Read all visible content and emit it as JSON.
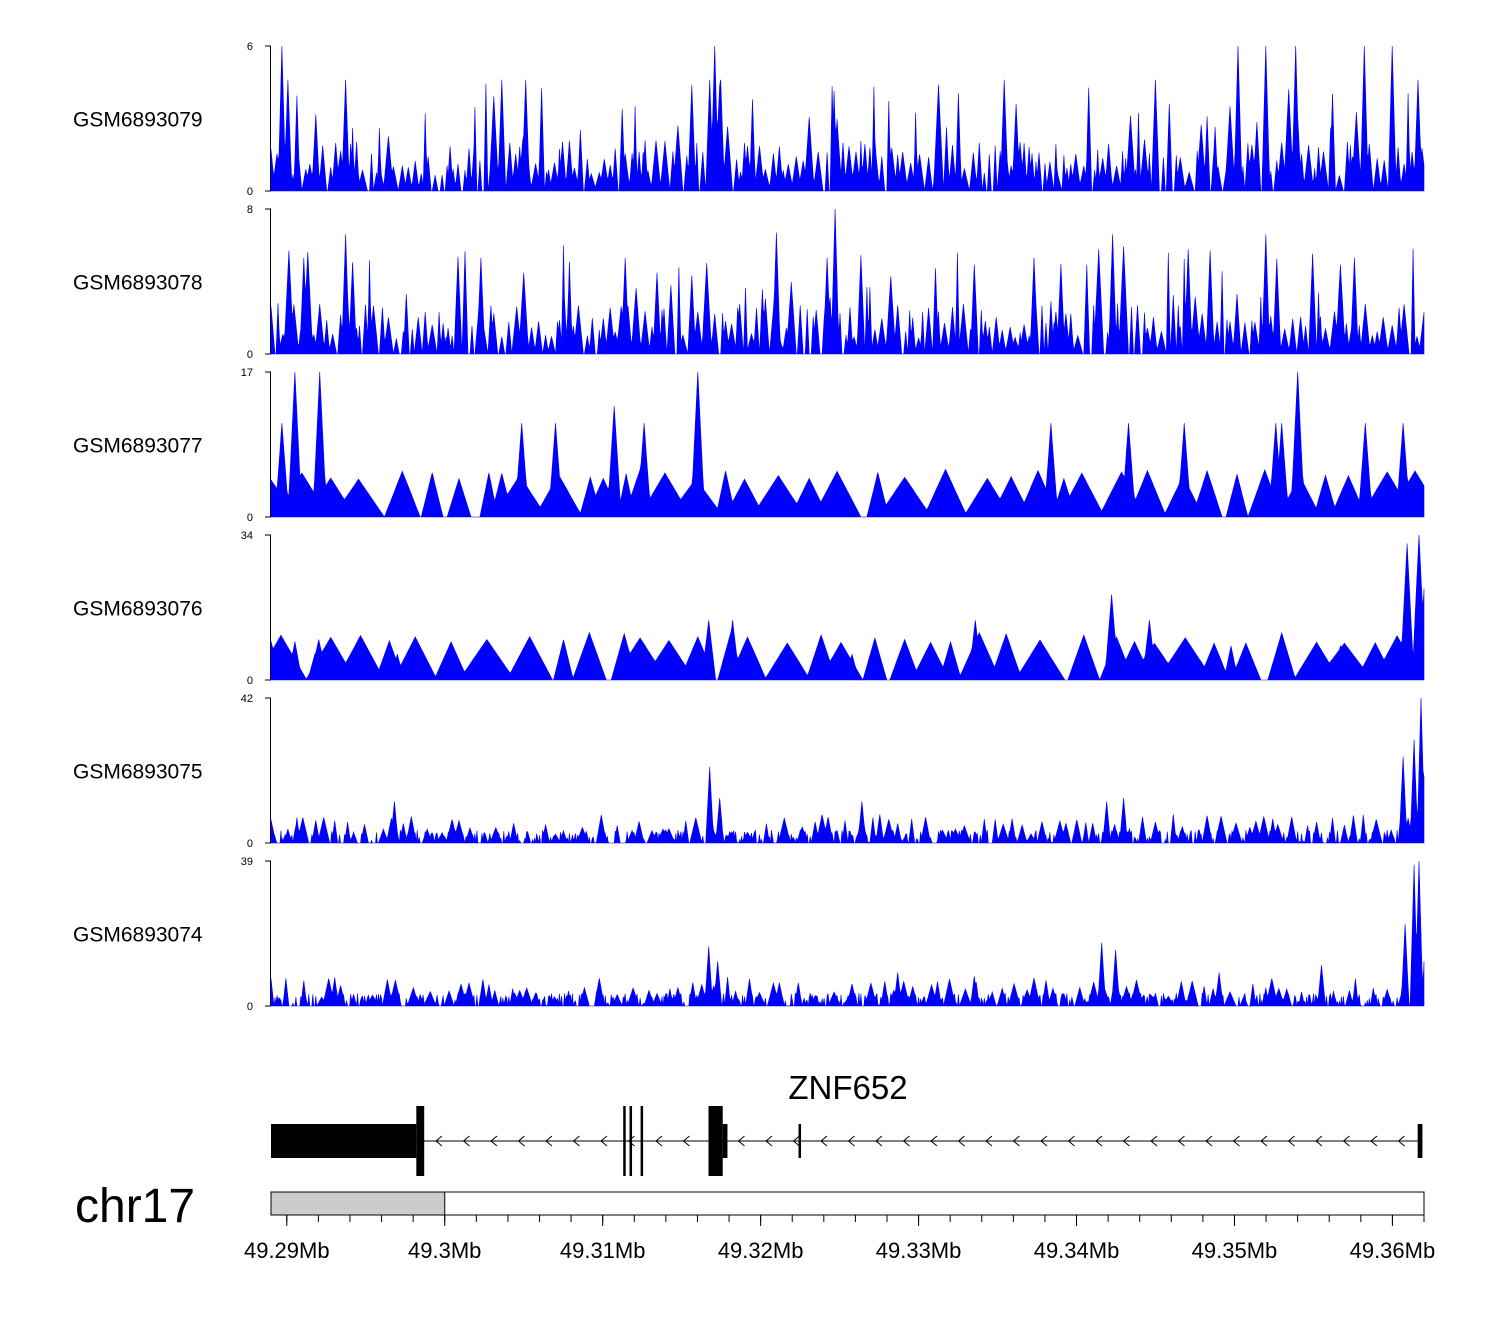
{
  "chart_data": {
    "type": "area",
    "title": "",
    "chromosome": "chr17",
    "gene": {
      "name": "ZNF652",
      "strand": "-",
      "start_mb": 49.289,
      "end_mb": 49.3618,
      "exons": [
        {
          "start": 49.289,
          "end": 49.2982,
          "kind": "utr"
        },
        {
          "start": 49.2982,
          "end": 49.2987,
          "kind": "cds"
        },
        {
          "start": 49.3113,
          "end": 49.3114,
          "kind": "cds"
        },
        {
          "start": 49.3117,
          "end": 49.3118,
          "kind": "cds"
        },
        {
          "start": 49.3124,
          "end": 49.3125,
          "kind": "cds"
        },
        {
          "start": 49.3167,
          "end": 49.3176,
          "kind": "cds"
        },
        {
          "start": 49.3176,
          "end": 49.3179,
          "kind": "utr"
        },
        {
          "start": 49.3224,
          "end": 49.3225,
          "kind": "utr"
        },
        {
          "start": 49.3616,
          "end": 49.3619,
          "kind": "utr"
        }
      ]
    },
    "axis": {
      "xlim_mb": [
        49.289,
        49.362
      ],
      "ticks": [
        "49.29Mb",
        "49.3Mb",
        "49.31Mb",
        "49.32Mb",
        "49.33Mb",
        "49.34Mb",
        "49.35Mb",
        "49.36Mb"
      ],
      "tick_values": [
        49.29,
        49.3,
        49.31,
        49.32,
        49.33,
        49.34,
        49.35,
        49.36
      ],
      "highlight_mb": [
        49.289,
        49.3
      ]
    },
    "series": [
      {
        "name": "GSM6893079",
        "ymin": "0",
        "ymax": "6",
        "ymax_value": 6,
        "style": "sparse",
        "seed": 79,
        "peaks": [
          [
            49.2897,
            6
          ],
          [
            49.2901,
            4.6
          ],
          [
            49.2937,
            4.6
          ],
          [
            49.3036,
            4.6
          ],
          [
            49.3051,
            4.6
          ],
          [
            49.3171,
            6
          ],
          [
            49.3168,
            4.6
          ],
          [
            49.3175,
            4.6
          ],
          [
            49.3354,
            4.6
          ],
          [
            49.345,
            4.6
          ],
          [
            49.3502,
            6
          ],
          [
            49.352,
            6
          ],
          [
            49.3539,
            6
          ],
          [
            49.3582,
            6
          ],
          [
            49.36,
            6
          ],
          [
            49.3616,
            4.6
          ]
        ]
      },
      {
        "name": "GSM6893078",
        "ymin": "0",
        "ymax": "8",
        "ymax_value": 8,
        "style": "sparse",
        "seed": 78,
        "peaks": [
          [
            49.2911,
            5.3
          ],
          [
            49.2937,
            6.6
          ],
          [
            49.3023,
            5.3
          ],
          [
            49.3114,
            5.3
          ],
          [
            49.321,
            6.7
          ],
          [
            49.3247,
            8
          ],
          [
            49.3242,
            5.3
          ],
          [
            49.3373,
            5.3
          ],
          [
            49.3423,
            6.6
          ],
          [
            49.352,
            6.6
          ],
          [
            49.3576,
            5.3
          ]
        ]
      },
      {
        "name": "GSM6893077",
        "ymin": "0",
        "ymax": "17",
        "ymax_value": 17,
        "style": "triangle",
        "seed": 77,
        "peaks": [
          [
            49.2905,
            17
          ],
          [
            49.2897,
            11
          ],
          [
            49.2921,
            17
          ],
          [
            49.3049,
            11
          ],
          [
            49.307,
            11
          ],
          [
            49.3107,
            13
          ],
          [
            49.3126,
            11
          ],
          [
            49.316,
            17
          ],
          [
            49.3384,
            11
          ],
          [
            49.3433,
            11
          ],
          [
            49.3468,
            11
          ],
          [
            49.3526,
            11
          ],
          [
            49.354,
            17
          ],
          [
            49.353,
            11
          ],
          [
            49.3583,
            11
          ],
          [
            49.3607,
            11
          ]
        ]
      },
      {
        "name": "GSM6893076",
        "ymin": "0",
        "ymax": "34",
        "ymax_value": 34,
        "style": "triangle",
        "seed": 76,
        "peaks": [
          [
            49.2905,
            9
          ],
          [
            49.2918,
            6
          ],
          [
            49.297,
            6
          ],
          [
            49.3167,
            14
          ],
          [
            49.3182,
            14
          ],
          [
            49.3258,
            6
          ],
          [
            49.3336,
            14
          ],
          [
            49.3422,
            20
          ],
          [
            49.3446,
            14
          ],
          [
            49.3498,
            8
          ],
          [
            49.3567,
            8
          ],
          [
            49.3609,
            32
          ],
          [
            49.3617,
            34
          ],
          [
            49.3621,
            30
          ]
        ]
      },
      {
        "name": "GSM6893075",
        "ymin": "0",
        "ymax": "42",
        "ymax_value": 42,
        "style": "dense",
        "seed": 75,
        "peaks": [
          [
            49.2968,
            12
          ],
          [
            49.3168,
            22
          ],
          [
            49.3174,
            13
          ],
          [
            49.3264,
            12
          ],
          [
            49.3359,
            7
          ],
          [
            49.3419,
            12
          ],
          [
            49.343,
            13
          ],
          [
            49.3524,
            7
          ],
          [
            49.3575,
            8
          ],
          [
            49.3607,
            25
          ],
          [
            49.3614,
            30
          ],
          [
            49.3618,
            42
          ],
          [
            49.3621,
            38
          ]
        ]
      },
      {
        "name": "GSM6893074",
        "ymin": "0",
        "ymax": "39",
        "ymax_value": 39,
        "style": "dense",
        "seed": 74,
        "peaks": [
          [
            49.3167,
            16
          ],
          [
            49.3173,
            12
          ],
          [
            49.3287,
            9
          ],
          [
            49.3335,
            8
          ],
          [
            49.3416,
            17
          ],
          [
            49.3425,
            15
          ],
          [
            49.349,
            9
          ],
          [
            49.3555,
            11
          ],
          [
            49.3608,
            22
          ],
          [
            49.3614,
            38
          ],
          [
            49.3617,
            39
          ],
          [
            49.3621,
            24
          ]
        ]
      }
    ]
  }
}
